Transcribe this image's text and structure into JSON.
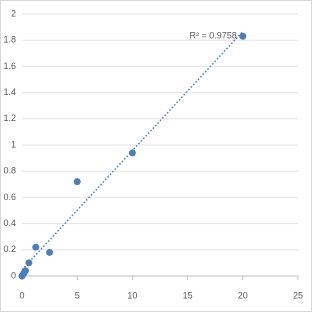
{
  "chart_data": {
    "type": "scatter",
    "annotation": "R² = 0.9758",
    "x": [
      0,
      0.156,
      0.3125,
      0.625,
      1.25,
      2.5,
      5,
      10,
      20
    ],
    "values": [
      0.0,
      0.02,
      0.04,
      0.1,
      0.22,
      0.18,
      0.72,
      0.94,
      1.83
    ],
    "color": "#4a7ebb",
    "trendline": "linear",
    "xlim": [
      0,
      25
    ],
    "xticks": [
      0,
      5,
      10,
      15,
      20,
      25
    ],
    "ylim": [
      0,
      2
    ],
    "yticks": [
      0,
      0.2,
      0.4,
      0.6,
      0.8,
      1,
      1.2,
      1.4,
      1.6,
      1.8,
      2
    ],
    "grid": true
  }
}
